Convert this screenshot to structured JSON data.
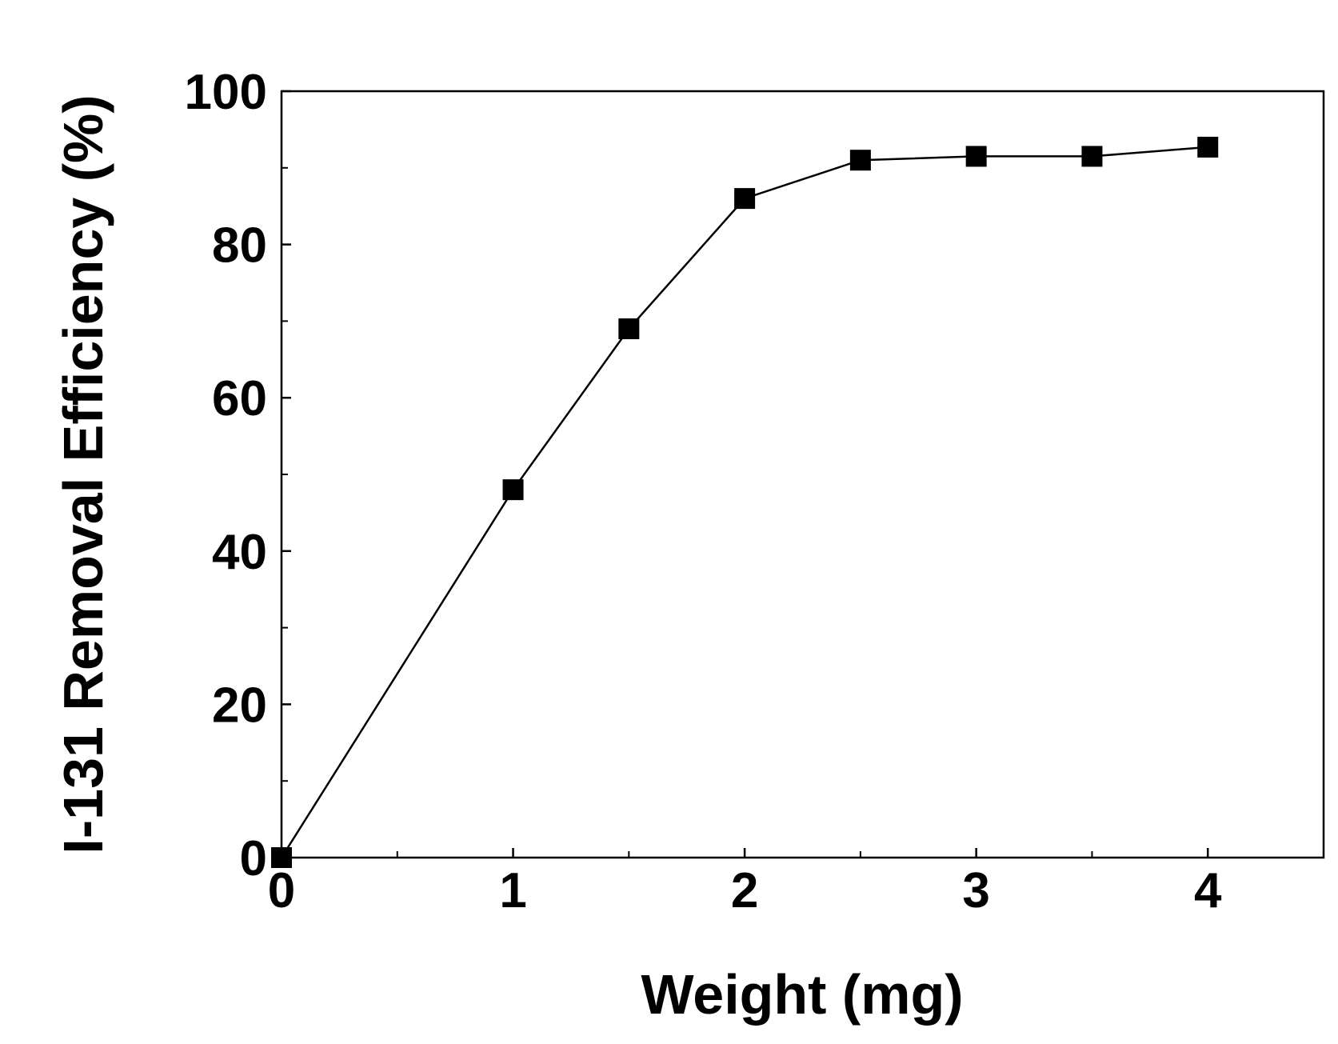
{
  "chart_data": {
    "type": "line",
    "title": "",
    "xlabel": "Weight (mg)",
    "ylabel": "I-131 Removal Efficiency (%)",
    "xlim": [
      0,
      4.5
    ],
    "ylim": [
      0,
      100
    ],
    "x_ticks": [
      0,
      1,
      2,
      3,
      4
    ],
    "y_ticks": [
      0,
      20,
      40,
      60,
      80,
      100
    ],
    "x_tick_labels": [
      "0",
      "1",
      "2",
      "3",
      "4"
    ],
    "y_tick_labels": [
      "0",
      "20",
      "40",
      "60",
      "80",
      "100"
    ],
    "x_minor_ticks": [
      0.5,
      1.5,
      2.5,
      3.5
    ],
    "y_minor_ticks": [
      10,
      30,
      50,
      70,
      90
    ],
    "grid": false,
    "legend": "none",
    "marker": "filled-square",
    "color": "#000000",
    "series": [
      {
        "x": [
          0,
          1,
          1.5,
          2,
          2.5,
          3,
          3.5,
          4
        ],
        "values": [
          0,
          48,
          69,
          86,
          91,
          91.5,
          91.5,
          92.7
        ]
      }
    ]
  }
}
